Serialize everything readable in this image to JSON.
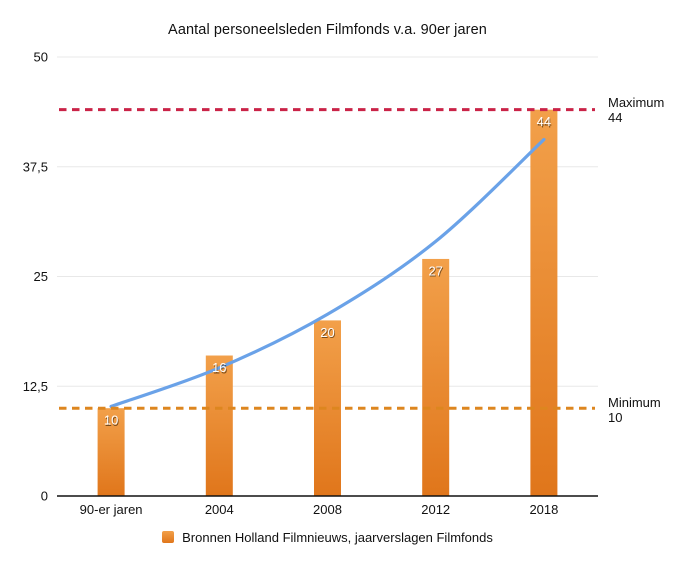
{
  "title": "Aantal personeelsleden Filmfonds v.a. 90er jaren",
  "chart_data": {
    "type": "bar",
    "title": "Aantal personeelsleden Filmfonds v.a. 90er jaren",
    "categories": [
      "90-er jaren",
      "2004",
      "2008",
      "2012",
      "2018"
    ],
    "series": [
      {
        "name": "Bronnen Holland Filmnieuws, jaarverslagen Filmfonds",
        "type": "bar",
        "values": [
          10,
          16,
          20,
          27,
          44
        ]
      },
      {
        "name": "trend-curve",
        "type": "line",
        "values": [
          10.2,
          14.6,
          20.7,
          29.0,
          40.6
        ]
      }
    ],
    "bar_labels": [
      "10",
      "16",
      "20",
      "27",
      "44"
    ],
    "y_ticks": [
      {
        "label": "50",
        "value": 50
      },
      {
        "label": "37,5",
        "value": 37.5
      },
      {
        "label": "25",
        "value": 25
      },
      {
        "label": "12,5",
        "value": 12.5
      },
      {
        "label": "0",
        "value": 0
      }
    ],
    "ylim": [
      0,
      50
    ],
    "grid": true,
    "legend_position": "bottom-center",
    "reference_lines": [
      {
        "name": "maximum",
        "label_line1": "Maximum",
        "label_line2": "44",
        "value": 44,
        "color": "#ca2347",
        "style": "dashed"
      },
      {
        "name": "minimum",
        "label_line1": "Minimum",
        "label_line2": "10",
        "value": 10,
        "color": "#dd861f",
        "style": "dashed"
      }
    ],
    "legend": {
      "label": "Bronnen Holland Filmnieuws, jaarverslagen Filmfonds",
      "swatch_color": "#e8832a"
    },
    "colors": {
      "bar_top": "#f2a04a",
      "bar_bottom": "#e0761b",
      "trend_line": "#6aa2e8",
      "gridline": "#e8e8e8",
      "axis": "#111111",
      "text": "#111111",
      "bar_label": "#ffffff"
    }
  }
}
